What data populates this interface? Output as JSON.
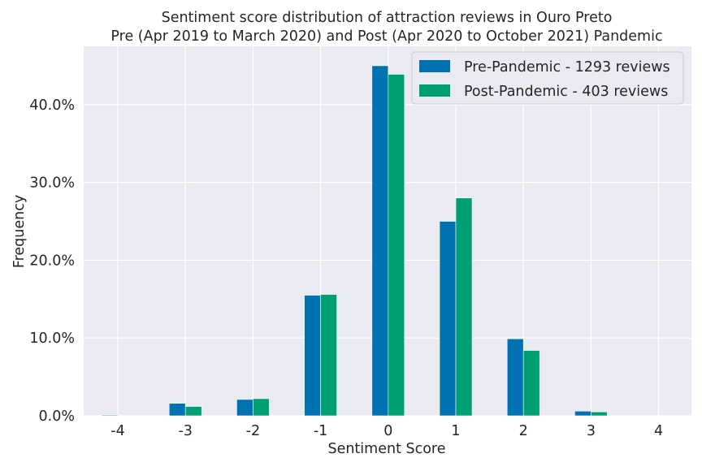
{
  "chart_data": {
    "type": "bar",
    "title": "Sentiment score distribution of attraction reviews in Ouro Preto",
    "subtitle": "Pre (Apr 2019 to March 2020) and Post (Apr 2020 to October 2021) Pandemic",
    "xlabel": "Sentiment Score",
    "ylabel": "Frequency",
    "categories": [
      "-4",
      "-3",
      "-2",
      "-1",
      "0",
      "1",
      "2",
      "3",
      "4"
    ],
    "ylim": [
      0,
      47.5
    ],
    "yticks": [
      "0.0%",
      "10.0%",
      "20.0%",
      "30.0%",
      "40.0%"
    ],
    "grid": true,
    "legend_position": "top-right",
    "series": [
      {
        "name": "Pre-Pandemic - 1293 reviews",
        "color": "#0072b2",
        "values": [
          0.1,
          1.6,
          2.1,
          15.5,
          45.0,
          25.0,
          9.9,
          0.6,
          0.0
        ]
      },
      {
        "name": "Post-Pandemic - 403 reviews",
        "color": "#009e73",
        "values": [
          0.0,
          1.2,
          2.2,
          15.6,
          43.9,
          28.0,
          8.4,
          0.5,
          0.0
        ]
      }
    ]
  }
}
